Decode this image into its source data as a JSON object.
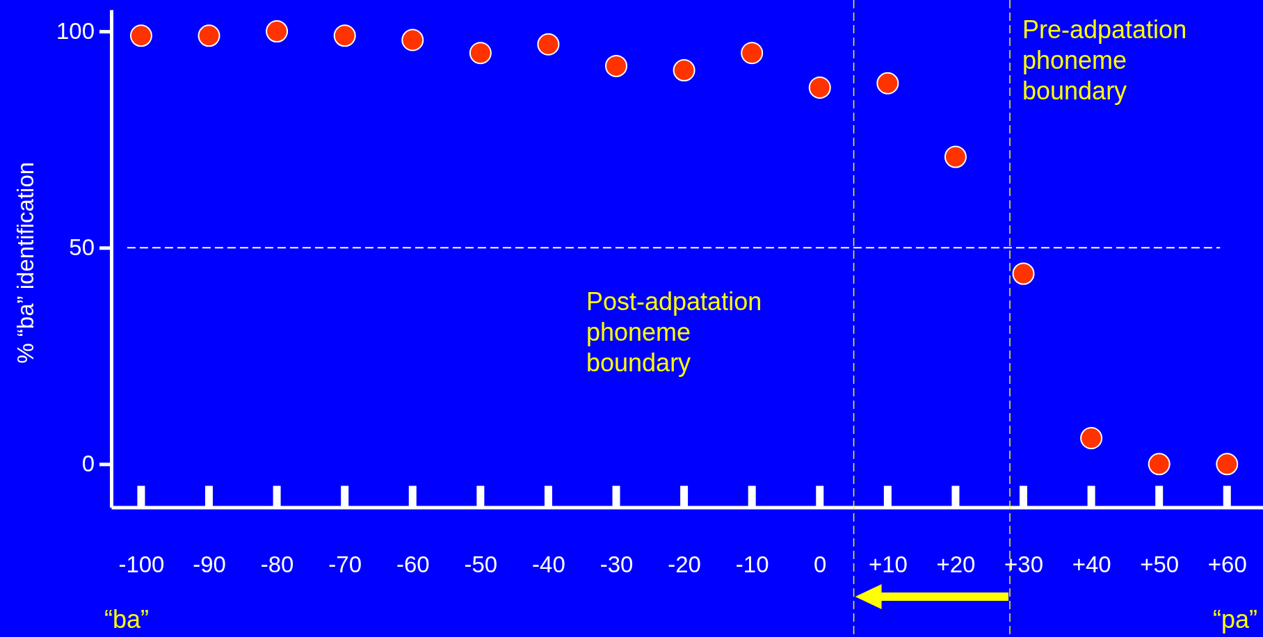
{
  "chart_data": {
    "type": "scatter",
    "ylabel": "% “ba” identification",
    "x": [
      -100,
      -90,
      -80,
      -70,
      -60,
      -50,
      -40,
      -30,
      -20,
      -10,
      0,
      10,
      20,
      30,
      40,
      50,
      60
    ],
    "series": [
      {
        "color": "#ff3300",
        "values": [
          99,
          99,
          100,
          99,
          98,
          95,
          97,
          92,
          91,
          95,
          87,
          88,
          71,
          44,
          6,
          0,
          0
        ]
      }
    ],
    "xlim": [
      -104.4,
      65.3
    ],
    "ylim": [
      -10,
      105
    ],
    "xticks": [
      -100,
      -90,
      -80,
      -70,
      -60,
      -50,
      -40,
      -30,
      -20,
      -10,
      0,
      {
        "value": 10,
        "label": "+10"
      },
      {
        "value": 20,
        "label": "+20"
      },
      {
        "value": 30,
        "label": "+30"
      },
      {
        "value": 40,
        "label": "+40"
      },
      {
        "value": 50,
        "label": "+50"
      },
      {
        "value": 60,
        "label": "+60"
      }
    ],
    "yticks": [
      0,
      50,
      100
    ],
    "ref_lines": [
      {
        "axis": "y",
        "value": 50,
        "color": "#ffffff",
        "line_style": "dashed"
      },
      {
        "axis": "x",
        "value": 5,
        "label": "Post-adpatation\nphoneme\nboundary",
        "color": "#ffff00",
        "line_style": "dashed"
      },
      {
        "axis": "x",
        "value": 28,
        "label": "Pre-adpatation\nphoneme\nboundary",
        "color": "#ffff00",
        "line_style": "dashed"
      }
    ],
    "annotations": [
      "“ba”",
      "“pa”"
    ],
    "marker": "circle",
    "grid": false
  }
}
